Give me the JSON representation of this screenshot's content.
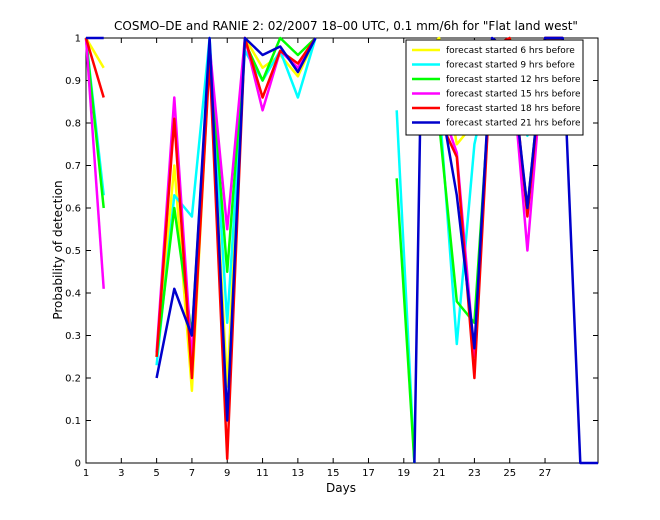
{
  "chart_data": {
    "type": "line",
    "title": "COSMO–DE and RANIE 2: 02/2007 18–00 UTC, 0.1 mm/6h for \"Flat land west\"",
    "xlabel": "Days",
    "ylabel": "Probability of detection",
    "xlim": [
      1,
      30
    ],
    "ylim": [
      0,
      1
    ],
    "xticks": [
      "1",
      "3",
      "5",
      "7",
      "9",
      "11",
      "13",
      "15",
      "17",
      "19",
      "21",
      "23",
      "25",
      "27"
    ],
    "yticks": [
      "0",
      "0.1",
      "0.2",
      "0.3",
      "0.4",
      "0.5",
      "0.6",
      "0.7",
      "0.8",
      "0.9",
      "1"
    ],
    "legend_position": "top-right",
    "series": [
      {
        "name": "forecast started 6 hrs before",
        "color": "#ffff00",
        "segments": [
          [
            [
              1,
              1
            ],
            [
              2,
              0.93
            ]
          ],
          [
            [
              5,
              0.25
            ],
            [
              6,
              0.7
            ],
            [
              7,
              0.17
            ],
            [
              8,
              0.96
            ],
            [
              9,
              0.18
            ],
            [
              10,
              1
            ],
            [
              11,
              0.93
            ],
            [
              12,
              0.96
            ],
            [
              13,
              0.91
            ],
            [
              14,
              1
            ]
          ],
          [
            [
              20,
              0.96
            ],
            [
              21,
              1
            ],
            [
              22,
              0.75
            ],
            [
              23,
              0.8
            ],
            [
              24,
              0.95
            ],
            [
              25,
              1
            ],
            [
              26,
              0.9
            ],
            [
              27,
              1
            ],
            [
              28,
              1
            ]
          ]
        ]
      },
      {
        "name": "forecast started 9 hrs before",
        "color": "#00ffff",
        "segments": [
          [
            [
              1,
              1
            ],
            [
              2,
              0.63
            ]
          ],
          [
            [
              5,
              0.23
            ],
            [
              6,
              0.63
            ],
            [
              7,
              0.58
            ],
            [
              8,
              1
            ],
            [
              9,
              0.33
            ],
            [
              10,
              0.97
            ],
            [
              11,
              0.9
            ],
            [
              12,
              0.97
            ],
            [
              13,
              0.86
            ],
            [
              14,
              1
            ]
          ],
          [
            [
              18.6,
              0.83
            ],
            [
              19.6,
              0
            ]
          ],
          [
            [
              20,
              0.9
            ],
            [
              21,
              0.85
            ],
            [
              22,
              0.28
            ],
            [
              23,
              0.75
            ],
            [
              24,
              0.94
            ],
            [
              25,
              1
            ],
            [
              26,
              0.77
            ],
            [
              27,
              1
            ],
            [
              28,
              1
            ]
          ]
        ]
      },
      {
        "name": "forecast started 12 hrs before",
        "color": "#00ff00",
        "segments": [
          [
            [
              1,
              1
            ],
            [
              2,
              0.6
            ]
          ],
          [
            [
              5,
              0.25
            ],
            [
              6,
              0.6
            ],
            [
              7,
              0.3
            ],
            [
              8,
              0.98
            ],
            [
              9,
              0.45
            ],
            [
              10,
              0.99
            ],
            [
              11,
              0.9
            ],
            [
              12,
              1
            ],
            [
              13,
              0.96
            ],
            [
              14,
              1
            ]
          ],
          [
            [
              18.6,
              0.67
            ],
            [
              19.6,
              0
            ]
          ],
          [
            [
              20,
              0.93
            ],
            [
              21,
              0.8
            ],
            [
              22,
              0.38
            ],
            [
              23,
              0.33
            ],
            [
              24,
              0.96
            ],
            [
              25,
              0.95
            ],
            [
              26,
              0.6
            ],
            [
              27,
              1
            ],
            [
              28,
              1
            ]
          ]
        ]
      },
      {
        "name": "forecast started 15 hrs before",
        "color": "#ff00ff",
        "segments": [
          [
            [
              1,
              1
            ],
            [
              2,
              0.41
            ]
          ],
          [
            [
              5,
              0.26
            ],
            [
              6,
              0.86
            ],
            [
              7,
              0.24
            ],
            [
              8,
              0.98
            ],
            [
              9,
              0.55
            ],
            [
              10,
              1
            ],
            [
              11,
              0.83
            ],
            [
              12,
              0.97
            ],
            [
              13,
              0.93
            ],
            [
              14,
              1
            ]
          ],
          [
            [
              20,
              0.97
            ],
            [
              21,
              0.85
            ],
            [
              22,
              0.73
            ],
            [
              23,
              0.25
            ],
            [
              24,
              0.97
            ],
            [
              25,
              0.99
            ],
            [
              26,
              0.5
            ],
            [
              27,
              1
            ],
            [
              28,
              1
            ]
          ]
        ]
      },
      {
        "name": "forecast started 18 hrs before",
        "color": "#ff0000",
        "segments": [
          [
            [
              1,
              1
            ],
            [
              2,
              0.86
            ]
          ],
          [
            [
              5,
              0.25
            ],
            [
              6,
              0.81
            ],
            [
              7,
              0.2
            ],
            [
              8,
              0.95
            ],
            [
              9,
              0.01
            ],
            [
              10,
              1
            ],
            [
              11,
              0.86
            ],
            [
              12,
              0.97
            ],
            [
              13,
              0.94
            ],
            [
              14,
              1
            ]
          ],
          [
            [
              20,
              0.97
            ],
            [
              21,
              0.81
            ],
            [
              22,
              0.72
            ],
            [
              23,
              0.2
            ],
            [
              24,
              0.98
            ],
            [
              25,
              1
            ],
            [
              26,
              0.58
            ],
            [
              27,
              1
            ],
            [
              28,
              1
            ]
          ]
        ]
      },
      {
        "name": "forecast started 21 hrs before",
        "color": "#0000cc",
        "segments": [
          [
            [
              1,
              1
            ],
            [
              2,
              1
            ]
          ],
          [
            [
              5,
              0.2
            ],
            [
              6,
              0.41
            ],
            [
              7,
              0.3
            ],
            [
              8,
              1
            ],
            [
              9,
              0.1
            ],
            [
              10,
              1
            ],
            [
              11,
              0.96
            ],
            [
              12,
              0.98
            ],
            [
              13,
              0.92
            ],
            [
              14,
              1
            ]
          ],
          [
            [
              19.6,
              0
            ],
            [
              20,
              0.97
            ],
            [
              21,
              0.87
            ],
            [
              22,
              0.63
            ],
            [
              23,
              0.27
            ],
            [
              24,
              1
            ],
            [
              25,
              0.97
            ],
            [
              26,
              0.6
            ],
            [
              27,
              1
            ],
            [
              28,
              1
            ],
            [
              29,
              0
            ],
            [
              30,
              0
            ]
          ]
        ]
      }
    ]
  }
}
